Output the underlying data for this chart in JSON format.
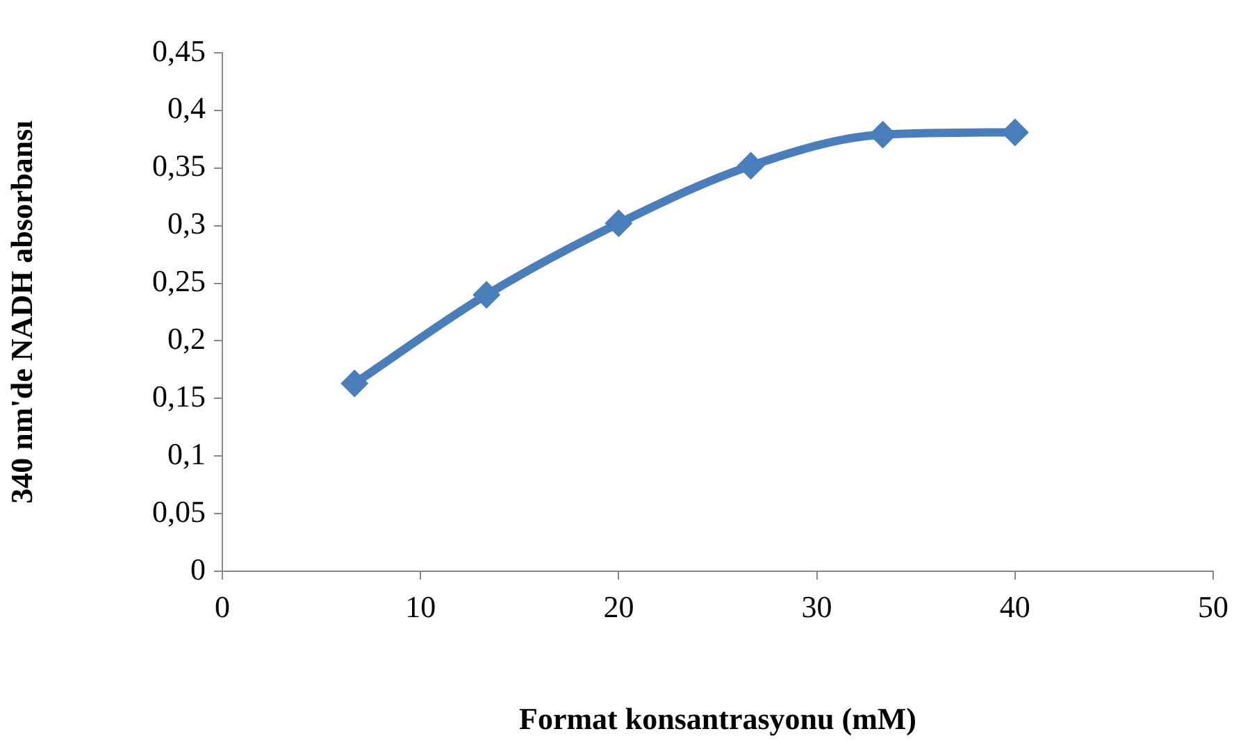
{
  "chart_data": {
    "type": "line",
    "xlabel": "Format konsantrasyonu (mM)",
    "ylabel": "340 nm'de NADH absorbansı",
    "x": [
      6.67,
      13.33,
      20,
      26.67,
      33.33,
      40
    ],
    "series": [
      {
        "color": "#4a7ebb",
        "values": [
          0.163,
          0.24,
          0.302,
          0.352,
          0.379,
          0.381
        ]
      }
    ],
    "xlim": [
      0,
      50
    ],
    "xticks": [
      0,
      10,
      20,
      30,
      40,
      50
    ],
    "ylim": [
      0,
      0.45
    ],
    "yticks": [
      0,
      {
        "value": 0.05,
        "label": "0,05"
      },
      {
        "value": 0.1,
        "label": "0,1"
      },
      {
        "value": 0.15,
        "label": "0,15"
      },
      {
        "value": 0.2,
        "label": "0,2"
      },
      {
        "value": 0.25,
        "label": "0,25"
      },
      {
        "value": 0.3,
        "label": "0,3"
      },
      {
        "value": 0.35,
        "label": "0,35"
      },
      {
        "value": 0.4,
        "label": "0,4"
      },
      {
        "value": 0.45,
        "label": "0,45"
      }
    ],
    "grid": false,
    "legend": false,
    "marker": "diamond",
    "line_style": "solid"
  }
}
